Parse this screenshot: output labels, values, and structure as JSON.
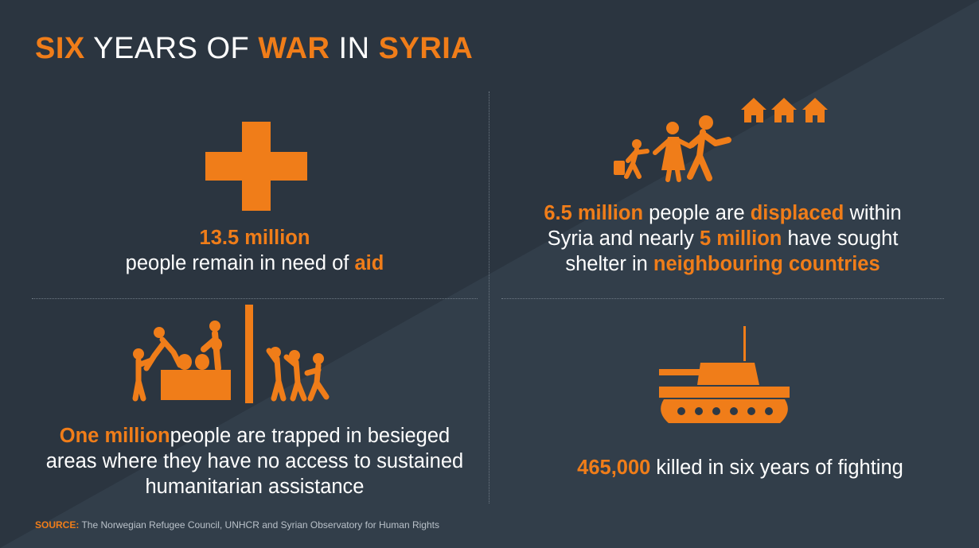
{
  "colors": {
    "accent": "#f07d19",
    "background": "#2b3540",
    "background_light": "#323e4a",
    "text": "#ffffff"
  },
  "title": {
    "part1": "SIX",
    "part2": " YEARS OF ",
    "part3": "WAR",
    "part4": " IN ",
    "part5": "SYRIA"
  },
  "panels": {
    "aid": {
      "icon": "red-cross-icon",
      "highlight": "13.5 million",
      "line2_text": "people remain in need of ",
      "line2_highlight": "aid"
    },
    "displaced": {
      "icon": "fleeing-family-icon",
      "p1_highlight": "6.5 million",
      "p1_text": " people are ",
      "p1_highlight2": "displaced",
      "p1_text2": " within",
      "p2_text": "Syria and nearly ",
      "p2_highlight": "5 million",
      "p2_text2": " have sought",
      "p3_text": "shelter in ",
      "p3_highlight": "neighbouring countries"
    },
    "siege": {
      "icon": "siege-aid-icon",
      "highlight": "One million",
      "text1": "people are trapped in besieged",
      "text2": "areas where they have no access to sustained",
      "text3": "humanitarian assistance"
    },
    "killed": {
      "icon": "tank-icon",
      "highlight": "465,000",
      "text": " killed in six years of fighting"
    }
  },
  "source": {
    "label": "SOURCE:",
    "text": " The Norwegian Refugee Council, UNHCR and Syrian Observatory for Human Rights"
  }
}
